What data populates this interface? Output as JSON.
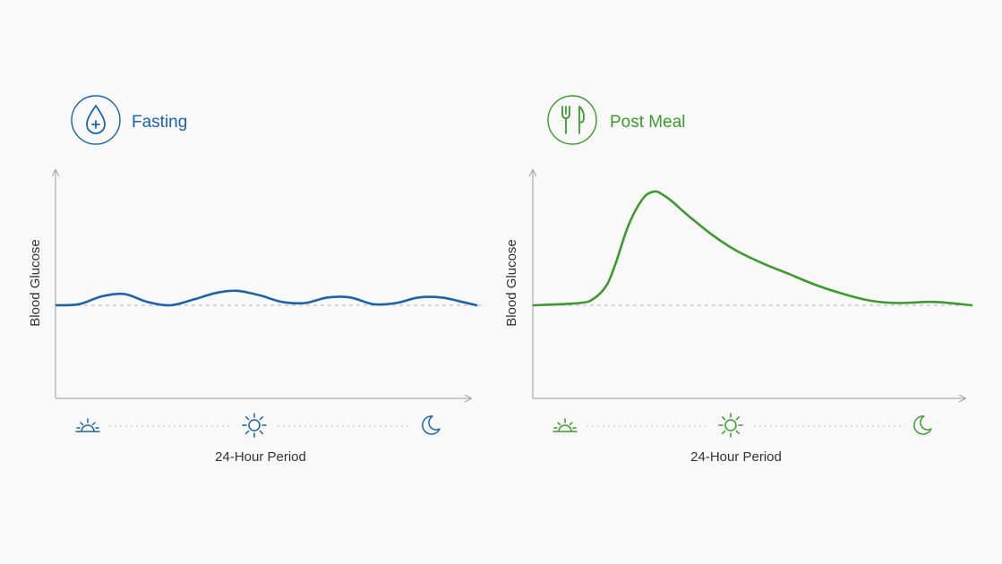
{
  "colors": {
    "fasting": "#1d63a9",
    "post_meal": "#3c9a2e",
    "axis": "#aaaaaa",
    "baseline": "#b5b5b5",
    "text": "#333333"
  },
  "chart_data": [
    {
      "type": "line",
      "title": "Fasting",
      "title_icon": "water-drop-plus-icon",
      "xlabel": "24-Hour Period",
      "ylabel": "Blood Glucose",
      "time_icons": [
        "sunrise-icon",
        "sun-icon",
        "moon-icon"
      ],
      "baseline": 0,
      "xlim": [
        0,
        24
      ],
      "ylim": [
        -1,
        1.2
      ],
      "series": [
        {
          "x": [
            0,
            1.3,
            2.6,
            3.9,
            5.2,
            6.5,
            7.8,
            9.1,
            10.3,
            11.6,
            12.9,
            14.2,
            15.5,
            16.8,
            18.1,
            19.4,
            20.7,
            22.0,
            23.2,
            24
          ],
          "values": [
            0,
            0.01,
            0.08,
            0.1,
            0.03,
            0,
            0.05,
            0.11,
            0.13,
            0.09,
            0.03,
            0.02,
            0.07,
            0.07,
            0.01,
            0.02,
            0.07,
            0.07,
            0.03,
            0
          ]
        }
      ]
    },
    {
      "type": "line",
      "title": "Post Meal",
      "title_icon": "fork-knife-icon",
      "xlabel": "24-Hour Period",
      "ylabel": "Blood Glucose",
      "time_icons": [
        "sunrise-icon",
        "sun-icon",
        "moon-icon"
      ],
      "baseline": 0,
      "xlim": [
        0,
        24
      ],
      "ylim": [
        -1,
        1.2
      ],
      "series": [
        {
          "x": [
            0,
            2.5,
            3.3,
            4.0,
            4.5,
            5.2,
            6.0,
            6.6,
            7.0,
            7.6,
            8.5,
            9.8,
            11.0,
            12.5,
            14.0,
            15.5,
            17.0,
            18.5,
            20.0,
            22.0,
            24
          ],
          "values": [
            0,
            0.02,
            0.06,
            0.18,
            0.38,
            0.72,
            0.96,
            1.02,
            1.0,
            0.93,
            0.8,
            0.63,
            0.5,
            0.38,
            0.28,
            0.18,
            0.1,
            0.04,
            0.02,
            0.03,
            0
          ]
        }
      ]
    }
  ]
}
